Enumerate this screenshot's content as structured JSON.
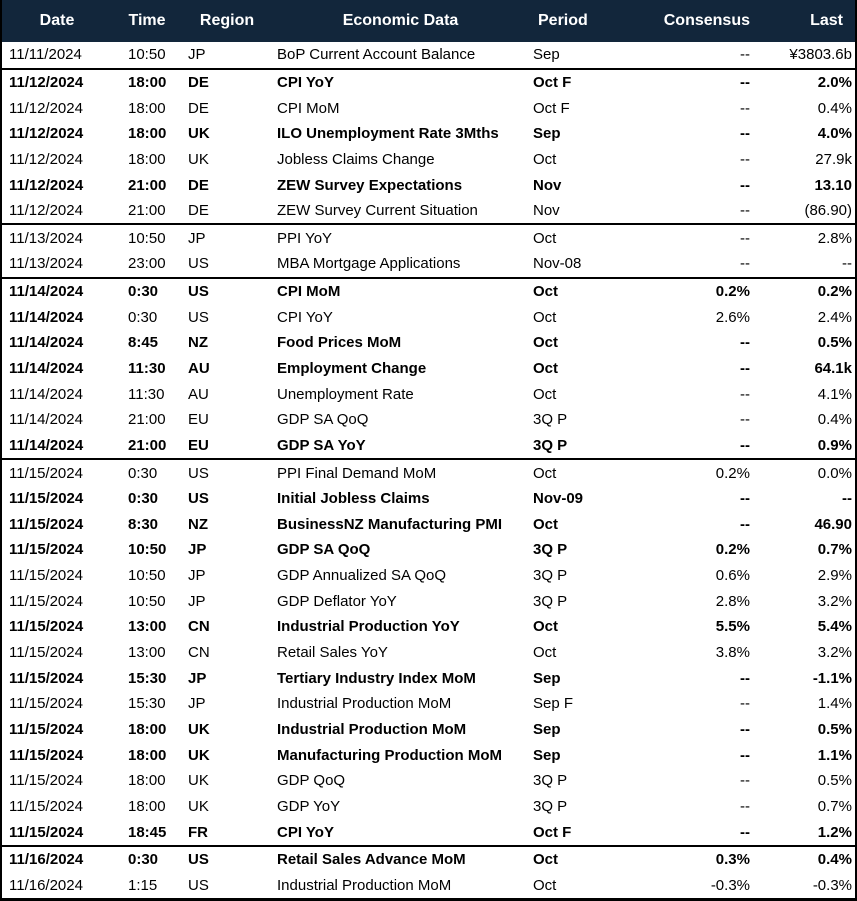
{
  "colors": {
    "header_bg": "#12263B",
    "header_text": "#FFFFFF",
    "body_text": "#000000",
    "row_bg": "#FFFFFF",
    "border": "#000000"
  },
  "chart_data": {
    "type": "table",
    "columns": [
      "Date",
      "Time",
      "Region",
      "Economic Data",
      "Period",
      "Consensus",
      "Last"
    ],
    "rows": [
      {
        "date": "11/11/2024",
        "time": "10:50",
        "region": "JP",
        "event": "BoP Current Account Balance",
        "period": "Sep",
        "consensus": "--",
        "last": "¥3803.6b"
      },
      {
        "date": "11/12/2024",
        "time": "18:00",
        "region": "DE",
        "event": "CPI YoY",
        "period": "Oct F",
        "consensus": "--",
        "last": "2.0%",
        "bold": true,
        "group_start": true
      },
      {
        "date": "11/12/2024",
        "time": "18:00",
        "region": "DE",
        "event": "CPI MoM",
        "period": "Oct F",
        "consensus": "--",
        "last": "0.4%"
      },
      {
        "date": "11/12/2024",
        "time": "18:00",
        "region": "UK",
        "event": "ILO Unemployment Rate 3Mths",
        "period": "Sep",
        "consensus": "--",
        "last": "4.0%",
        "bold": true
      },
      {
        "date": "11/12/2024",
        "time": "18:00",
        "region": "UK",
        "event": "Jobless Claims Change",
        "period": "Oct",
        "consensus": "--",
        "last": "27.9k"
      },
      {
        "date": "11/12/2024",
        "time": "21:00",
        "region": "DE",
        "event": "ZEW Survey Expectations",
        "period": "Nov",
        "consensus": "--",
        "last": "13.10",
        "bold": true
      },
      {
        "date": "11/12/2024",
        "time": "21:00",
        "region": "DE",
        "event": "ZEW Survey Current Situation",
        "period": "Nov",
        "consensus": "--",
        "last": "(86.90)"
      },
      {
        "date": "11/13/2024",
        "time": "10:50",
        "region": "JP",
        "event": "PPI YoY",
        "period": "Oct",
        "consensus": "--",
        "last": "2.8%",
        "group_start": true
      },
      {
        "date": "11/13/2024",
        "time": "23:00",
        "region": "US",
        "event": "MBA Mortgage Applications",
        "period": "Nov-08",
        "consensus": "--",
        "last": "--"
      },
      {
        "date": "11/14/2024",
        "time": "0:30",
        "region": "US",
        "event": "CPI MoM",
        "period": "Oct",
        "consensus": "0.2%",
        "last": "0.2%",
        "bold": true,
        "group_start": true
      },
      {
        "date": "11/14/2024",
        "time": "0:30",
        "region": "US",
        "event": "CPI YoY",
        "period": "Oct",
        "consensus": "2.6%",
        "last": "2.4%",
        "date_bold": true
      },
      {
        "date": "11/14/2024",
        "time": "8:45",
        "region": "NZ",
        "event": "Food Prices MoM",
        "period": "Oct",
        "consensus": "--",
        "last": "0.5%",
        "bold": true
      },
      {
        "date": "11/14/2024",
        "time": "11:30",
        "region": "AU",
        "event": "Employment Change",
        "period": "Oct",
        "consensus": "--",
        "last": "64.1k",
        "bold": true
      },
      {
        "date": "11/14/2024",
        "time": "11:30",
        "region": "AU",
        "event": "Unemployment Rate",
        "period": "Oct",
        "consensus": "--",
        "last": "4.1%"
      },
      {
        "date": "11/14/2024",
        "time": "21:00",
        "region": "EU",
        "event": "GDP SA QoQ",
        "period": "3Q P",
        "consensus": "--",
        "last": "0.4%"
      },
      {
        "date": "11/14/2024",
        "time": "21:00",
        "region": "EU",
        "event": "GDP SA YoY",
        "period": "3Q P",
        "consensus": "--",
        "last": "0.9%",
        "bold": true
      },
      {
        "date": "11/15/2024",
        "time": "0:30",
        "region": "US",
        "event": "PPI Final Demand MoM",
        "period": "Oct",
        "consensus": "0.2%",
        "last": "0.0%",
        "group_start": true
      },
      {
        "date": "11/15/2024",
        "time": "0:30",
        "region": "US",
        "event": "Initial Jobless Claims",
        "period": "Nov-09",
        "consensus": "--",
        "last": "--",
        "bold": true
      },
      {
        "date": "11/15/2024",
        "time": "8:30",
        "region": "NZ",
        "event": "BusinessNZ Manufacturing PMI",
        "period": "Oct",
        "consensus": "--",
        "last": "46.90",
        "bold": true
      },
      {
        "date": "11/15/2024",
        "time": "10:50",
        "region": "JP",
        "event": "GDP SA QoQ",
        "period": "3Q P",
        "consensus": "0.2%",
        "last": "0.7%",
        "bold": true
      },
      {
        "date": "11/15/2024",
        "time": "10:50",
        "region": "JP",
        "event": "GDP Annualized SA QoQ",
        "period": "3Q P",
        "consensus": "0.6%",
        "last": "2.9%"
      },
      {
        "date": "11/15/2024",
        "time": "10:50",
        "region": "JP",
        "event": "GDP Deflator YoY",
        "period": "3Q P",
        "consensus": "2.8%",
        "last": "3.2%"
      },
      {
        "date": "11/15/2024",
        "time": "13:00",
        "region": "CN",
        "event": "Industrial Production YoY",
        "period": "Oct",
        "consensus": "5.5%",
        "last": "5.4%",
        "bold": true
      },
      {
        "date": "11/15/2024",
        "time": "13:00",
        "region": "CN",
        "event": "Retail Sales YoY",
        "period": "Oct",
        "consensus": "3.8%",
        "last": "3.2%"
      },
      {
        "date": "11/15/2024",
        "time": "15:30",
        "region": "JP",
        "event": "Tertiary Industry Index MoM",
        "period": "Sep",
        "consensus": "--",
        "last": "-1.1%",
        "bold": true
      },
      {
        "date": "11/15/2024",
        "time": "15:30",
        "region": "JP",
        "event": "Industrial Production MoM",
        "period": "Sep F",
        "consensus": "--",
        "last": "1.4%"
      },
      {
        "date": "11/15/2024",
        "time": "18:00",
        "region": "UK",
        "event": "Industrial Production MoM",
        "period": "Sep",
        "consensus": "--",
        "last": "0.5%",
        "bold": true
      },
      {
        "date": "11/15/2024",
        "time": "18:00",
        "region": "UK",
        "event": "Manufacturing Production MoM",
        "period": "Sep",
        "consensus": "--",
        "last": "1.1%",
        "bold": true
      },
      {
        "date": "11/15/2024",
        "time": "18:00",
        "region": "UK",
        "event": "GDP QoQ",
        "period": "3Q P",
        "consensus": "--",
        "last": "0.5%"
      },
      {
        "date": "11/15/2024",
        "time": "18:00",
        "region": "UK",
        "event": "GDP YoY",
        "period": "3Q P",
        "consensus": "--",
        "last": "0.7%"
      },
      {
        "date": "11/15/2024",
        "time": "18:45",
        "region": "FR",
        "event": "CPI YoY",
        "period": "Oct F",
        "consensus": "--",
        "last": "1.2%",
        "bold": true
      },
      {
        "date": "11/16/2024",
        "time": "0:30",
        "region": "US",
        "event": "Retail Sales Advance MoM",
        "period": "Oct",
        "consensus": "0.3%",
        "last": "0.4%",
        "bold": true,
        "group_start": true
      },
      {
        "date": "11/16/2024",
        "time": "1:15",
        "region": "US",
        "event": "Industrial Production MoM",
        "period": "Oct",
        "consensus": "-0.3%",
        "last": "-0.3%"
      }
    ]
  }
}
